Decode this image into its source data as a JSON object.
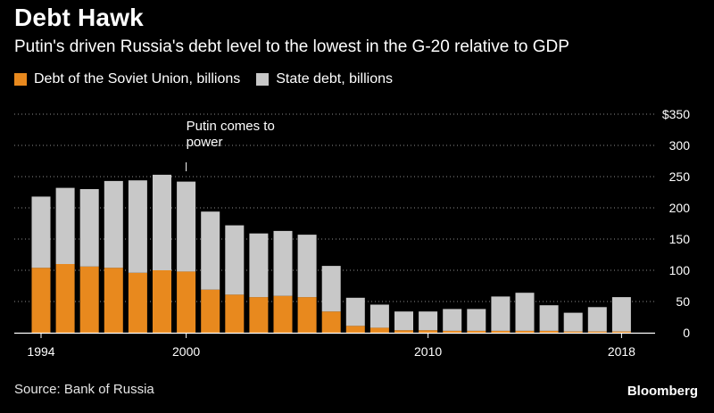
{
  "chart_data": {
    "type": "bar",
    "stacked": true,
    "title": "Debt Hawk",
    "subtitle": "Putin's driven Russia's debt level to the lowest in the G-20 relative to GDP",
    "source": "Source: Bank of Russia",
    "brand": "Bloomberg",
    "x": [
      1994,
      1995,
      1996,
      1997,
      1998,
      1999,
      2000,
      2001,
      2002,
      2003,
      2004,
      2005,
      2006,
      2007,
      2008,
      2009,
      2010,
      2011,
      2012,
      2013,
      2014,
      2015,
      2016,
      2017,
      2018
    ],
    "x_tick_labels": [
      {
        "x": 1994,
        "label": "1994"
      },
      {
        "x": 2000,
        "label": "2000"
      },
      {
        "x": 2010,
        "label": "2010"
      },
      {
        "x": 2018,
        "label": "2018"
      }
    ],
    "series": [
      {
        "name": "Debt of the Soviet Union, billions",
        "color": "#e8891e",
        "values": [
          104,
          110,
          106,
          104,
          96,
          100,
          98,
          69,
          61,
          57,
          59,
          57,
          34,
          11,
          8,
          4,
          4,
          3,
          3,
          3,
          3,
          3,
          2,
          2,
          2
        ]
      },
      {
        "name": "State debt, billions",
        "color": "#c8c8c8",
        "values": [
          114,
          122,
          124,
          139,
          148,
          153,
          144,
          125,
          111,
          102,
          104,
          100,
          73,
          45,
          37,
          30,
          30,
          35,
          35,
          55,
          61,
          41,
          30,
          39,
          55
        ]
      }
    ],
    "y_ticks": [
      0,
      50,
      100,
      150,
      200,
      250,
      300,
      350
    ],
    "y_tick_labels": [
      "0",
      "50",
      "100",
      "150",
      "200",
      "250",
      "300",
      "$350"
    ],
    "ylim": [
      0,
      350
    ],
    "grid": true,
    "legend_position": "top-left",
    "annotations": [
      {
        "x": 2000,
        "lines": [
          "Putin comes to",
          "power"
        ]
      }
    ]
  }
}
